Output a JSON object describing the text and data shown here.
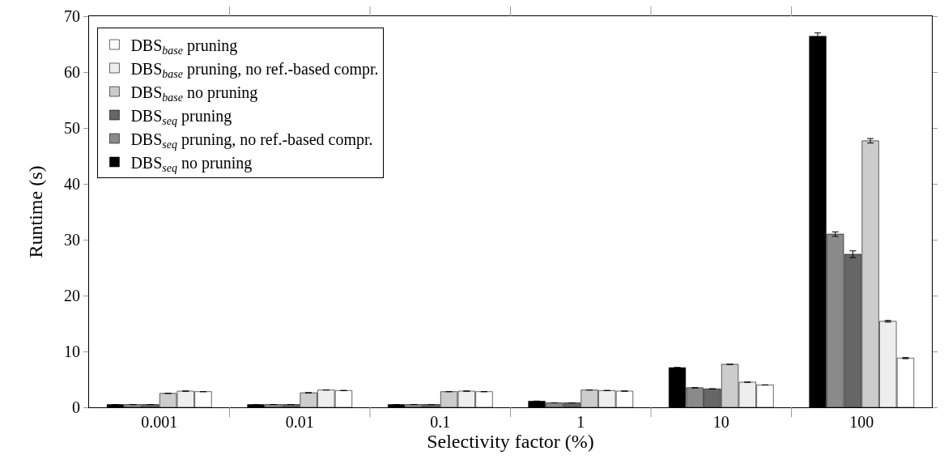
{
  "chart_data": {
    "type": "bar",
    "xlabel": "Selectivity factor (%)",
    "ylabel": "Runtime (s)",
    "categories": [
      "0.001",
      "0.01",
      "0.1",
      "1",
      "10",
      "100"
    ],
    "series": [
      {
        "name": "DBS$_{seq}$ no pruning",
        "color": "#000000",
        "values": [
          0.5,
          0.5,
          0.5,
          1.1,
          7.1,
          66.4
        ],
        "errors": [
          null,
          null,
          null,
          null,
          null,
          0.6
        ]
      },
      {
        "name": "DBS$_{seq}$ pruning, no ref.-based compr.",
        "color": "#8a8a8a",
        "values": [
          0.5,
          0.5,
          0.5,
          0.8,
          3.5,
          31.0
        ],
        "errors": [
          null,
          null,
          null,
          null,
          null,
          0.4
        ]
      },
      {
        "name": "DBS$_{seq}$ pruning",
        "color": "#666666",
        "values": [
          0.5,
          0.5,
          0.5,
          0.8,
          3.3,
          27.4
        ],
        "errors": [
          null,
          null,
          null,
          null,
          null,
          0.6
        ]
      },
      {
        "name": "DBS$_{base}$ no pruning",
        "color": "#cccccc",
        "values": [
          2.5,
          2.6,
          2.8,
          3.1,
          7.7,
          47.7
        ],
        "errors": [
          null,
          null,
          null,
          null,
          null,
          0.4
        ]
      },
      {
        "name": "DBS$_{base}$ pruning, no ref.-based compr.",
        "color": "#eeeeee",
        "values": [
          2.9,
          3.1,
          2.9,
          3.0,
          4.5,
          15.4
        ],
        "errors": [
          null,
          null,
          null,
          null,
          null,
          0.15
        ]
      },
      {
        "name": "DBS$_{base}$ pruning",
        "color": "#ffffff",
        "values": [
          2.8,
          3.0,
          2.8,
          2.9,
          4.0,
          8.8
        ],
        "errors": [
          null,
          null,
          null,
          null,
          null,
          0.1
        ]
      }
    ],
    "ylim": [
      0,
      70
    ],
    "yticks": [
      0,
      10,
      20,
      30,
      40,
      50,
      60,
      70
    ],
    "legend": "top left",
    "grid": false
  }
}
